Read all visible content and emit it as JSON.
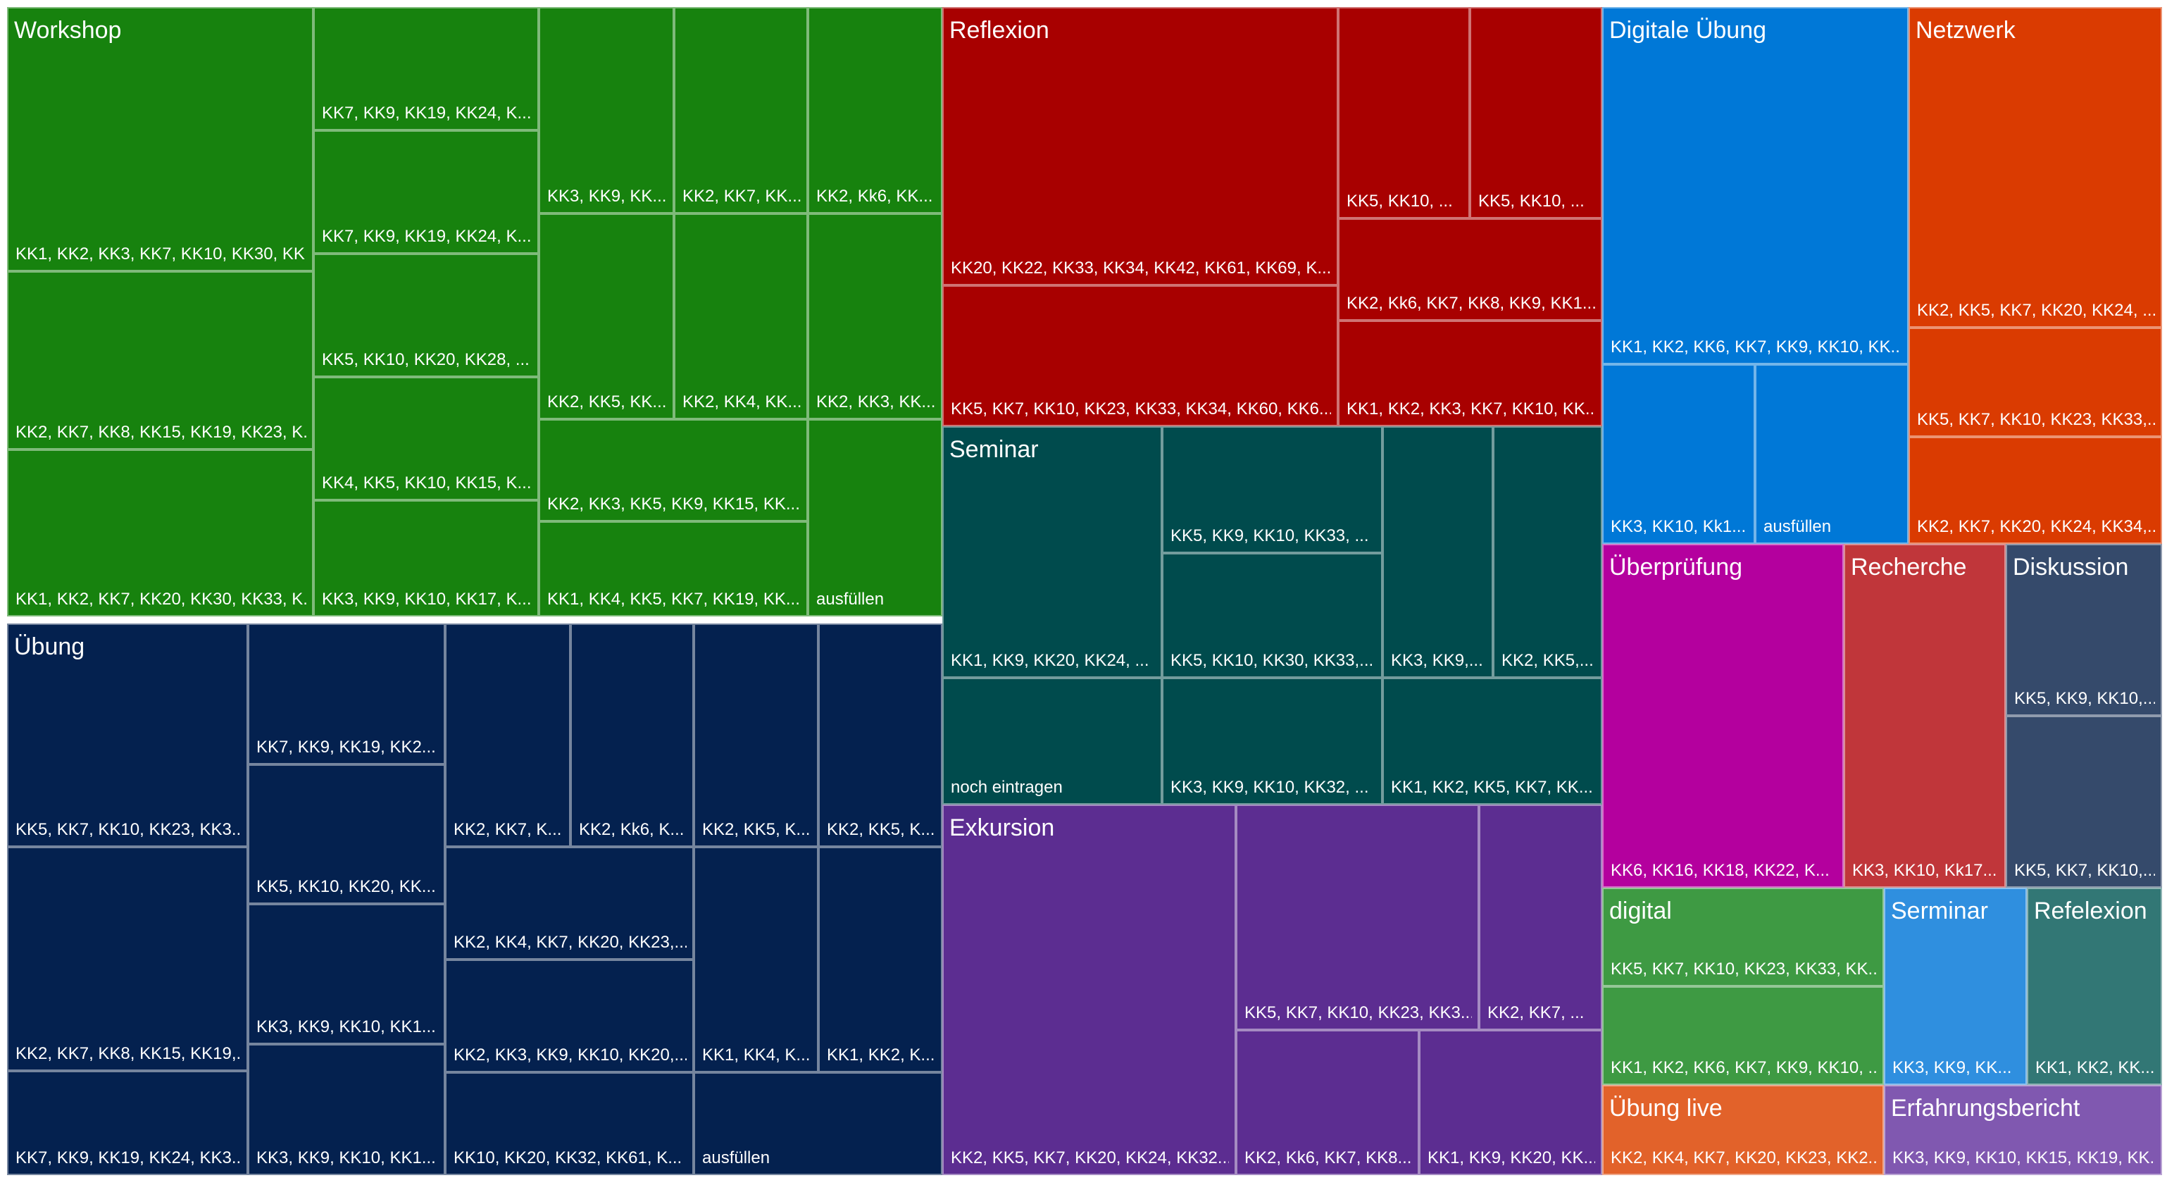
{
  "chart_data": {
    "type": "treemap",
    "title": "",
    "groups": [
      {
        "name": "Workshop",
        "color": "#17820e",
        "leaves": [
          {
            "label": "KK1, KK2, KK3, KK7, KK10, KK30, KK..."
          },
          {
            "label": "KK2, KK7, KK8, KK15, KK19, KK23, K..."
          },
          {
            "label": "KK1, KK2, KK7, KK20, KK30, KK33, K..."
          },
          {
            "label": "KK7, KK9, KK19, KK24, K..."
          },
          {
            "label": "KK7, KK9, KK19, KK24, K..."
          },
          {
            "label": "KK5, KK10, KK20, KK28, ..."
          },
          {
            "label": "KK4, KK5, KK10, KK15, K..."
          },
          {
            "label": "KK3, KK9, KK10, KK17, K..."
          },
          {
            "label": "KK3, KK9, KK..."
          },
          {
            "label": "KK2, KK7, KK..."
          },
          {
            "label": "KK2, Kk6, KK..."
          },
          {
            "label": "KK2, KK5, KK..."
          },
          {
            "label": "KK2, KK4, KK..."
          },
          {
            "label": "KK2, KK3, KK..."
          },
          {
            "label": "KK2, KK3, KK5, KK9, KK15, KK..."
          },
          {
            "label": "KK1, KK4, KK5, KK7, KK19, KK..."
          },
          {
            "label": "ausfüllen"
          }
        ]
      },
      {
        "name": "Übung",
        "color": "#04214f",
        "leaves": [
          {
            "label": "KK5, KK7, KK10, KK23, KK3..."
          },
          {
            "label": "KK2, KK7, KK8, KK15, KK19,..."
          },
          {
            "label": "KK7, KK9, KK19, KK24, KK3..."
          },
          {
            "label": "KK7, KK9, KK19, KK2..."
          },
          {
            "label": "KK5, KK10, KK20, KK..."
          },
          {
            "label": "KK3, KK9, KK10, KK1..."
          },
          {
            "label": "KK3, KK9, KK10, KK1..."
          },
          {
            "label": "KK2, KK7, K..."
          },
          {
            "label": "KK2, Kk6, K..."
          },
          {
            "label": "KK2, KK4, KK7, KK20, KK23,..."
          },
          {
            "label": "KK2, KK3, KK9, KK10, KK20,..."
          },
          {
            "label": "KK10, KK20, KK32, KK61, K..."
          },
          {
            "label": "KK2, KK5, K..."
          },
          {
            "label": "KK2, KK5, K..."
          },
          {
            "label": "KK1, KK4, K..."
          },
          {
            "label": "KK1, KK2, K..."
          },
          {
            "label": "ausfüllen"
          }
        ]
      },
      {
        "name": "Reflexion",
        "color": "#a80000",
        "leaves": [
          {
            "label": "KK20, KK22, KK33, KK34, KK42, KK61, KK69, K..."
          },
          {
            "label": "KK5, KK7, KK10, KK23, KK33, KK34, KK60, KK6..."
          },
          {
            "label": "KK5, KK10, ..."
          },
          {
            "label": "KK5, KK10, ..."
          },
          {
            "label": "KK2, Kk6, KK7, KK8, KK9, KK1..."
          },
          {
            "label": "KK1, KK2, KK3, KK7, KK10, KK..."
          }
        ]
      },
      {
        "name": "Seminar",
        "color": "#004b4d",
        "leaves": [
          {
            "label": "KK1, KK9, KK20, KK24, ..."
          },
          {
            "label": "noch eintragen"
          },
          {
            "label": "KK5, KK9, KK10, KK33, ..."
          },
          {
            "label": "KK5, KK10, KK30, KK33,..."
          },
          {
            "label": "KK3, KK9, KK10, KK32, ..."
          },
          {
            "label": "KK3, KK9,..."
          },
          {
            "label": "KK2, KK5,..."
          },
          {
            "label": "KK1, KK2, KK5, KK7, KK..."
          }
        ]
      },
      {
        "name": "Exkursion",
        "color": "#5c2d91",
        "leaves": [
          {
            "label": "KK2, KK5, KK7, KK20, KK24, KK32..."
          },
          {
            "label": "KK5, KK7, KK10, KK23, KK3..."
          },
          {
            "label": "KK2, KK7, ..."
          },
          {
            "label": "KK2, Kk6, KK7, KK8..."
          },
          {
            "label": "KK1, KK9, KK20, KK..."
          }
        ]
      },
      {
        "name": "Digitale Übung",
        "color": "#0078d7",
        "leaves": [
          {
            "label": "KK1, KK2, KK6, KK7, KK9, KK10, KK..."
          },
          {
            "label": "KK3, KK10, Kk1..."
          },
          {
            "label": "ausfüllen"
          }
        ]
      },
      {
        "name": "Netzwerk",
        "color": "#da3b01",
        "leaves": [
          {
            "label": "KK2, KK5, KK7, KK20, KK24, ..."
          },
          {
            "label": "KK5, KK7, KK10, KK23, KK33,..."
          },
          {
            "label": "KK2, KK7, KK20, KK24, KK34,..."
          }
        ]
      },
      {
        "name": "Überprüfung",
        "color": "#b4009e",
        "leaves": [
          {
            "label": "KK6, KK16, KK18, KK22, K..."
          }
        ]
      },
      {
        "name": "Recherche",
        "color": "#c0363a",
        "leaves": [
          {
            "label": "KK3, KK10, Kk17..."
          }
        ]
      },
      {
        "name": "Diskussion",
        "color": "#354a6b",
        "leaves": [
          {
            "label": "KK5, KK9, KK10,..."
          },
          {
            "label": "KK5, KK7, KK10,..."
          }
        ]
      },
      {
        "name": "digital",
        "color": "#3e9a43",
        "leaves": [
          {
            "label": "KK5, KK7, KK10, KK23, KK33, KK..."
          },
          {
            "label": "KK1, KK2, KK6, KK7, KK9, KK10, ..."
          }
        ]
      },
      {
        "name": "Serminar",
        "color": "#2f8fdf",
        "leaves": [
          {
            "label": "KK3, KK9, KK..."
          }
        ]
      },
      {
        "name": "Refelexion",
        "color": "#327775",
        "leaves": [
          {
            "label": "KK1, KK2, KK..."
          }
        ]
      },
      {
        "name": "Übung live",
        "color": "#e2622a",
        "leaves": [
          {
            "label": "KK2, KK4, KK7, KK20, KK23, KK2..."
          }
        ]
      },
      {
        "name": "Erfahrungsbericht",
        "color": "#8058b0",
        "leaves": [
          {
            "label": "KK3, KK9, KK10, KK15, KK19, KK..."
          }
        ]
      }
    ]
  }
}
